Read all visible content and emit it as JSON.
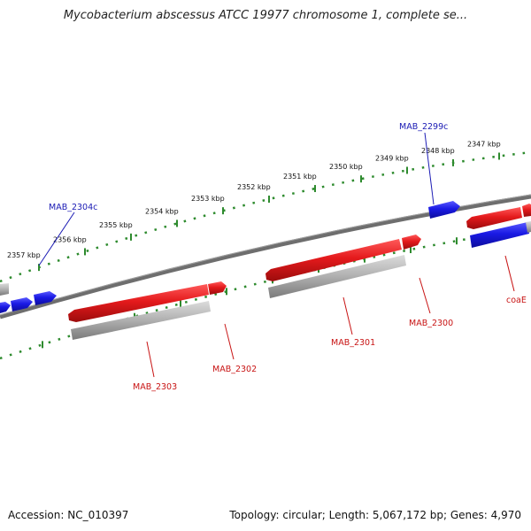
{
  "title": "Mycobacterium abscessus ATCC 19977 chromosome 1, complete se...",
  "footer": {
    "accession": "Accession: NC_010397",
    "topology": "Topology: circular; Length: 5,067,172 bp; Genes: 4,970"
  },
  "colors": {
    "forward": "#e41a1c",
    "reverse": "#1a1ae4",
    "pseudo": "#a9a9a9",
    "backbone": "#6e6e6e",
    "ticks": "#2e8b2e",
    "reverse_label": "#1a1ab4",
    "forward_label": "#c81414"
  },
  "scale_ticks": [
    "2357 kbp",
    "2356 kbp",
    "2355 kbp",
    "2354 kbp",
    "2353 kbp",
    "2352 kbp",
    "2351 kbp",
    "2350 kbp",
    "2349 kbp",
    "2348 kbp",
    "2347 kbp"
  ],
  "gene_labels": {
    "mab_2299c": "MAB_2299c",
    "mab_2304c": "MAB_2304c",
    "mab_2300": "MAB_2300",
    "mab_2301": "MAB_2301",
    "mab_2302": "MAB_2302",
    "mab_2303": "MAB_2303",
    "coae": "coaE"
  }
}
